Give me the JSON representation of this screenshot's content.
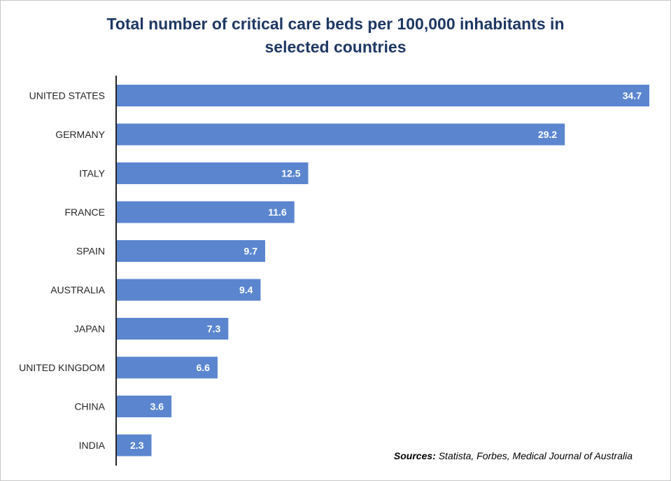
{
  "chart_data": {
    "type": "bar",
    "orientation": "horizontal",
    "title_line1": "Total number of critical care beds per 100,000 inhabitants in",
    "title_line2": "selected countries",
    "categories": [
      "UNITED STATES",
      "GERMANY",
      "ITALY",
      "FRANCE",
      "SPAIN",
      "AUSTRALIA",
      "JAPAN",
      "UNITED KINGDOM",
      "CHINA",
      "INDIA"
    ],
    "values": [
      34.7,
      29.2,
      12.5,
      11.6,
      9.7,
      9.4,
      7.3,
      6.6,
      3.6,
      2.3
    ],
    "value_labels": [
      "34.7",
      "29.2",
      "12.5",
      "11.6",
      "9.7",
      "9.4",
      "7.3",
      "6.6",
      "3.6",
      "2.3"
    ],
    "xlim": [
      0,
      34.7
    ],
    "grid": false,
    "legend": "none",
    "bar_color": "#5b86cf",
    "title_color": "#1f3864"
  },
  "sources": {
    "label": "Sources:",
    "text": " Statista, Forbes, Medical Journal of Australia"
  }
}
